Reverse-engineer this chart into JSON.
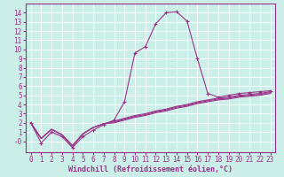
{
  "xlabel": "Windchill (Refroidissement éolien,°C)",
  "bg_color": "#cceee8",
  "line_color": "#993388",
  "grid_color": "#ffffff",
  "xlim": [
    -0.5,
    23.5
  ],
  "ylim": [
    -1.2,
    15
  ],
  "xticks": [
    0,
    1,
    2,
    3,
    4,
    5,
    6,
    7,
    8,
    9,
    10,
    11,
    12,
    13,
    14,
    15,
    16,
    17,
    18,
    19,
    20,
    21,
    22,
    23
  ],
  "yticks": [
    0,
    1,
    2,
    3,
    4,
    5,
    6,
    7,
    8,
    9,
    10,
    11,
    12,
    13,
    14
  ],
  "series": [
    {
      "x": [
        0,
        1,
        2,
        3,
        4,
        5,
        6,
        7,
        8,
        9,
        10,
        11,
        12,
        13,
        14,
        15,
        16,
        17,
        18,
        19,
        20,
        21,
        22,
        23
      ],
      "y": [
        2.0,
        -0.2,
        1.0,
        0.5,
        -0.7,
        0.5,
        1.2,
        1.8,
        2.3,
        4.3,
        9.6,
        10.3,
        12.8,
        14.0,
        14.1,
        13.1,
        9.0,
        5.2,
        4.8,
        5.0,
        5.2,
        5.3,
        5.4,
        5.5
      ],
      "marker": true
    },
    {
      "x": [
        0,
        1,
        2,
        3,
        4,
        5,
        6,
        7,
        8,
        9,
        10,
        11,
        12,
        13,
        14,
        15,
        16,
        17,
        18,
        19,
        20,
        21,
        22,
        23
      ],
      "y": [
        2.0,
        0.3,
        1.3,
        0.7,
        -0.5,
        0.8,
        1.5,
        1.9,
        2.2,
        2.5,
        2.8,
        3.0,
        3.3,
        3.5,
        3.8,
        4.0,
        4.3,
        4.5,
        4.7,
        4.8,
        5.0,
        5.1,
        5.2,
        5.4
      ],
      "marker": false
    },
    {
      "x": [
        0,
        1,
        2,
        3,
        4,
        5,
        6,
        7,
        8,
        9,
        10,
        11,
        12,
        13,
        14,
        15,
        16,
        17,
        18,
        19,
        20,
        21,
        22,
        23
      ],
      "y": [
        2.0,
        0.3,
        1.3,
        0.7,
        -0.5,
        0.8,
        1.5,
        1.9,
        2.1,
        2.4,
        2.7,
        2.9,
        3.2,
        3.4,
        3.7,
        3.9,
        4.2,
        4.4,
        4.6,
        4.7,
        4.9,
        5.0,
        5.1,
        5.3
      ],
      "marker": false
    },
    {
      "x": [
        0,
        1,
        2,
        3,
        4,
        5,
        6,
        7,
        8,
        9,
        10,
        11,
        12,
        13,
        14,
        15,
        16,
        17,
        18,
        19,
        20,
        21,
        22,
        23
      ],
      "y": [
        2.0,
        0.3,
        1.3,
        0.7,
        -0.5,
        0.8,
        1.5,
        1.9,
        2.0,
        2.3,
        2.6,
        2.8,
        3.1,
        3.3,
        3.6,
        3.8,
        4.1,
        4.3,
        4.5,
        4.6,
        4.8,
        4.9,
        5.0,
        5.2
      ],
      "marker": false
    }
  ],
  "tick_fontsize": 5.5,
  "xlabel_fontsize": 6.0,
  "spine_lw": 0.8,
  "grid_lw": 0.6,
  "line_lw": 0.8
}
